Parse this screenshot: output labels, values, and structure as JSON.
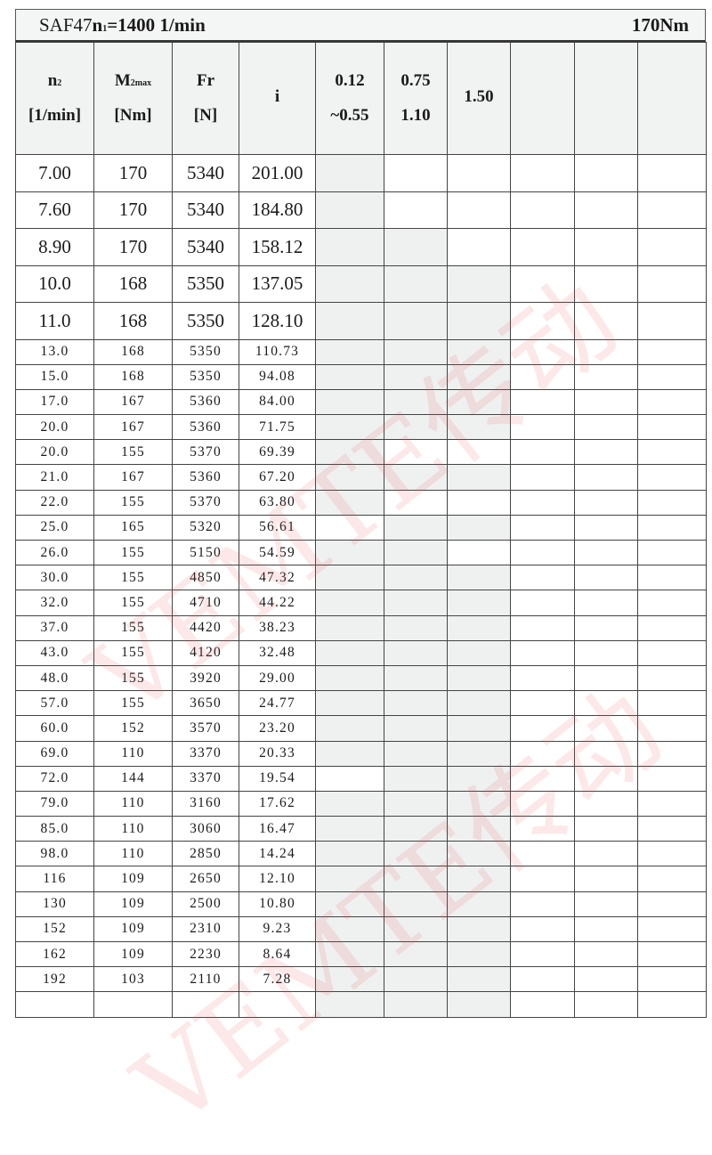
{
  "title": {
    "model": "SAF47",
    "n1_label": "n",
    "n1_sub": "1",
    "n1_value": "=1400 1/min",
    "torque": "170Nm"
  },
  "headers": [
    {
      "l1": "n",
      "sub": "2",
      "l2": "[1/min]"
    },
    {
      "l1": "M",
      "sub": "2max",
      "l2": "[Nm]"
    },
    {
      "l1": "Fr",
      "sub": "",
      "l2": "[N]"
    },
    {
      "l1": "i",
      "sub": "",
      "l2": ""
    },
    {
      "l1": "0.12",
      "sub": "",
      "l2": "~0.55"
    },
    {
      "l1": "0.75",
      "sub": "",
      "l2": "1.10"
    },
    {
      "l1": "1.50",
      "sub": "",
      "l2": ""
    },
    {
      "l1": "",
      "sub": "",
      "l2": ""
    },
    {
      "l1": "",
      "sub": "",
      "l2": ""
    },
    {
      "l1": "",
      "sub": "",
      "l2": ""
    }
  ],
  "rows": [
    {
      "n2": "7.00",
      "m2": "170",
      "fr": "5340",
      "i": "201.00",
      "shade": [
        1,
        0,
        0
      ]
    },
    {
      "n2": "7.60",
      "m2": "170",
      "fr": "5340",
      "i": "184.80",
      "shade": [
        1,
        0,
        0
      ]
    },
    {
      "n2": "8.90",
      "m2": "170",
      "fr": "5340",
      "i": "158.12",
      "shade": [
        1,
        1,
        0
      ]
    },
    {
      "n2": "10.0",
      "m2": "168",
      "fr": "5350",
      "i": "137.05",
      "shade": [
        1,
        1,
        1
      ]
    },
    {
      "n2": "11.0",
      "m2": "168",
      "fr": "5350",
      "i": "128.10",
      "shade": [
        1,
        1,
        1
      ]
    },
    {
      "n2": "13.0",
      "m2": "168",
      "fr": "5350",
      "i": "110.73",
      "shade": [
        1,
        1,
        1
      ]
    },
    {
      "n2": "15.0",
      "m2": "168",
      "fr": "5350",
      "i": "94.08",
      "shade": [
        1,
        1,
        1
      ]
    },
    {
      "n2": "17.0",
      "m2": "167",
      "fr": "5360",
      "i": "84.00",
      "shade": [
        1,
        1,
        1
      ]
    },
    {
      "n2": "20.0",
      "m2": "167",
      "fr": "5360",
      "i": "71.75",
      "shade": [
        1,
        1,
        1
      ]
    },
    {
      "n2": "20.0",
      "m2": "155",
      "fr": "5370",
      "i": "69.39",
      "shade": [
        1,
        0,
        0
      ]
    },
    {
      "n2": "21.0",
      "m2": "167",
      "fr": "5360",
      "i": "67.20",
      "shade": [
        1,
        1,
        1
      ]
    },
    {
      "n2": "22.0",
      "m2": "155",
      "fr": "5370",
      "i": "63.80",
      "shade": [
        1,
        0,
        0
      ]
    },
    {
      "n2": "25.0",
      "m2": "165",
      "fr": "5320",
      "i": "56.61",
      "shade": [
        0,
        1,
        1
      ]
    },
    {
      "n2": "26.0",
      "m2": "155",
      "fr": "5150",
      "i": "54.59",
      "shade": [
        1,
        1,
        0
      ]
    },
    {
      "n2": "30.0",
      "m2": "155",
      "fr": "4850",
      "i": "47.32",
      "shade": [
        1,
        1,
        1
      ]
    },
    {
      "n2": "32.0",
      "m2": "155",
      "fr": "4710",
      "i": "44.22",
      "shade": [
        1,
        1,
        1
      ]
    },
    {
      "n2": "37.0",
      "m2": "155",
      "fr": "4420",
      "i": "38.23",
      "shade": [
        1,
        1,
        1
      ]
    },
    {
      "n2": "43.0",
      "m2": "155",
      "fr": "4120",
      "i": "32.48",
      "shade": [
        1,
        1,
        1
      ]
    },
    {
      "n2": "48.0",
      "m2": "155",
      "fr": "3920",
      "i": "29.00",
      "shade": [
        1,
        1,
        1
      ]
    },
    {
      "n2": "57.0",
      "m2": "155",
      "fr": "3650",
      "i": "24.77",
      "shade": [
        1,
        1,
        1
      ]
    },
    {
      "n2": "60.0",
      "m2": "152",
      "fr": "3570",
      "i": "23.20",
      "shade": [
        1,
        1,
        1
      ]
    },
    {
      "n2": "69.0",
      "m2": "110",
      "fr": "3370",
      "i": "20.33",
      "shade": [
        1,
        1,
        1
      ]
    },
    {
      "n2": "72.0",
      "m2": "144",
      "fr": "3370",
      "i": "19.54",
      "shade": [
        0,
        1,
        1
      ]
    },
    {
      "n2": "79.0",
      "m2": "110",
      "fr": "3160",
      "i": "17.62",
      "shade": [
        1,
        1,
        1
      ]
    },
    {
      "n2": "85.0",
      "m2": "110",
      "fr": "3060",
      "i": "16.47",
      "shade": [
        1,
        1,
        1
      ]
    },
    {
      "n2": "98.0",
      "m2": "110",
      "fr": "2850",
      "i": "14.24",
      "shade": [
        1,
        1,
        1
      ]
    },
    {
      "n2": "116",
      "m2": "109",
      "fr": "2650",
      "i": "12.10",
      "shade": [
        1,
        1,
        1
      ]
    },
    {
      "n2": "130",
      "m2": "109",
      "fr": "2500",
      "i": "10.80",
      "shade": [
        1,
        1,
        1
      ]
    },
    {
      "n2": "152",
      "m2": "109",
      "fr": "2310",
      "i": "9.23",
      "shade": [
        1,
        1,
        1
      ]
    },
    {
      "n2": "162",
      "m2": "109",
      "fr": "2230",
      "i": "8.64",
      "shade": [
        1,
        1,
        1
      ]
    },
    {
      "n2": "192",
      "m2": "103",
      "fr": "2110",
      "i": "7.28",
      "shade": [
        1,
        1,
        1
      ]
    },
    {
      "n2": "",
      "m2": "",
      "fr": "",
      "i": "",
      "shade": [
        1,
        1,
        1
      ]
    }
  ],
  "watermark": "VEMTE传动",
  "colors": {
    "shade": "#eff1f1",
    "watermark": "#eb5050"
  }
}
